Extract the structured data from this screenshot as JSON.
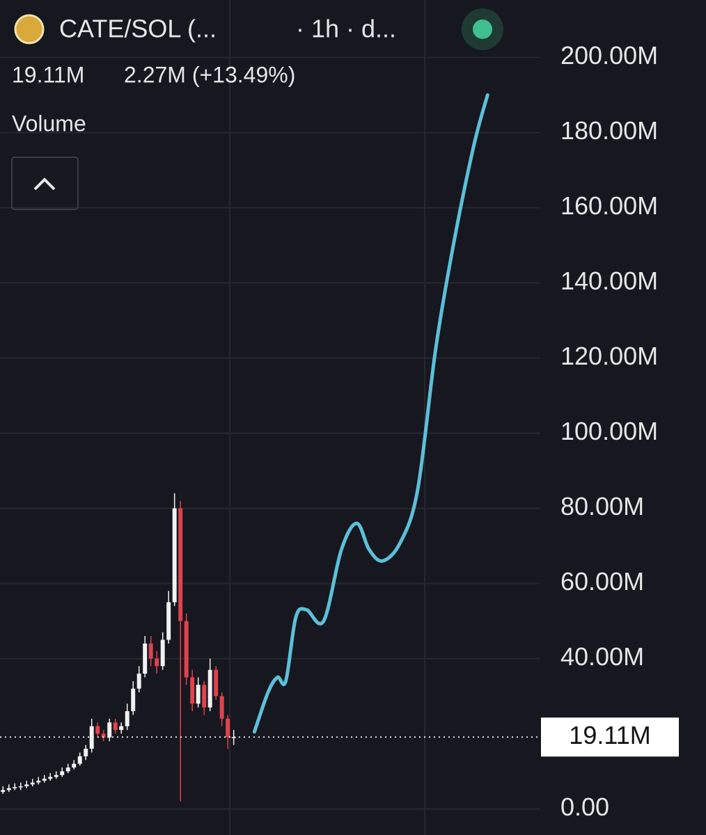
{
  "chart_data": {
    "type": "candlestick",
    "title": "CATE/SOL (...",
    "interval": "· 1h · d...",
    "price": "19.11M",
    "change": "2.27M (+13.49%)",
    "indicator": "Volume",
    "up_color": "#f2f2f2",
    "down_color": "#e0434d",
    "open": [
      4.5,
      5,
      5.5,
      5.8,
      6,
      6.5,
      7,
      7.5,
      8,
      8.5,
      9,
      10,
      11,
      12,
      14,
      16,
      22,
      20,
      19,
      23,
      21,
      22,
      26,
      32,
      36,
      44,
      40,
      38,
      45,
      55,
      80,
      50,
      35,
      28,
      33,
      27,
      37,
      30,
      24,
      19
    ],
    "high": [
      6,
      6.5,
      6.8,
      7,
      7.5,
      8,
      8.5,
      9,
      9.5,
      10,
      11,
      12,
      13,
      15,
      17,
      24,
      23,
      21,
      24,
      24,
      23,
      28,
      34,
      38,
      46,
      46,
      42,
      47,
      58,
      84,
      82,
      52,
      37,
      35,
      34,
      40,
      38,
      31,
      25,
      21
    ],
    "low": [
      4,
      4.5,
      5,
      5,
      5.5,
      6,
      6.5,
      7,
      7.5,
      8,
      8.5,
      9.5,
      10.5,
      11.5,
      13,
      15,
      19,
      18,
      18,
      20,
      20,
      21,
      25,
      31,
      35,
      38,
      36,
      37,
      44,
      54,
      2,
      33,
      26,
      27,
      25,
      26,
      29,
      22,
      16,
      17
    ],
    "close": [
      5,
      5.5,
      5.8,
      6,
      6.5,
      7,
      7.5,
      8,
      8.5,
      9,
      10,
      11,
      12,
      14,
      16,
      22,
      20,
      19,
      23,
      21,
      22,
      26,
      32,
      36,
      44,
      40,
      38,
      45,
      55,
      80,
      50,
      35,
      28,
      33,
      27,
      37,
      30,
      24,
      19,
      19.11
    ],
    "projection": {
      "color": "#5bc0d8",
      "x": [
        42.5,
        44.8,
        46.4,
        47.8,
        49.5,
        51.3,
        54.2,
        57.2,
        59.8,
        61.9,
        64.2,
        67.2,
        70.1,
        73.1,
        76,
        79.5,
        81.9
      ],
      "values": [
        20.5,
        31,
        35,
        34,
        51,
        53,
        50,
        69,
        76,
        69,
        66,
        71,
        85,
        122,
        149,
        176,
        190
      ]
    },
    "last_price": {
      "value": 19.11,
      "label": "19.11M"
    },
    "xlim": [
      -0.5,
      90.7
    ],
    "ylim": [
      -1.4,
      202.7
    ],
    "yticks": [
      {
        "value": 0,
        "label": "0.00"
      },
      {
        "value": 40,
        "label": "40.00M"
      },
      {
        "value": 60,
        "label": "60.00M"
      },
      {
        "value": 80,
        "label": "80.00M"
      },
      {
        "value": 100,
        "label": "100.00M"
      },
      {
        "value": 120,
        "label": "120.00M"
      },
      {
        "value": 140,
        "label": "140.00M"
      },
      {
        "value": 160,
        "label": "160.00M"
      },
      {
        "value": 180,
        "label": "180.00M"
      },
      {
        "value": 200,
        "label": "200.00M"
      }
    ],
    "grid": true
  }
}
